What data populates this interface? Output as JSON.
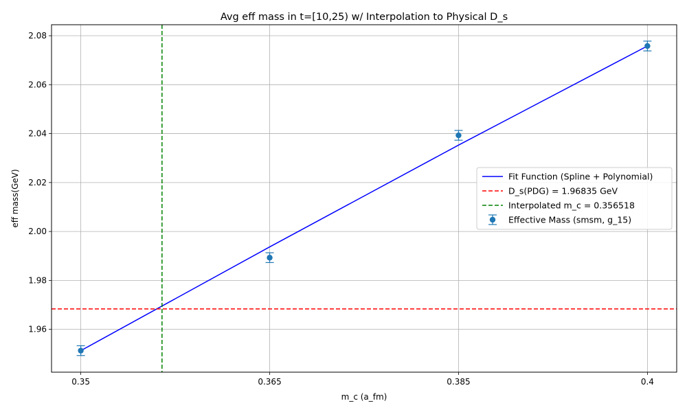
{
  "chart_data": {
    "type": "line",
    "title": "Avg eff mass in t=[10,25) w/ Interpolation to Physical D_s",
    "xlabel": "m_c (a_fm)",
    "ylabel": "eff mass(GeV)",
    "x_tick_labels": [
      "0.35",
      "0.365",
      "0.385",
      "0.4"
    ],
    "x_tick_positions": [
      0,
      1,
      2,
      3
    ],
    "x_range": [
      -0.155,
      3.155
    ],
    "ylim": [
      1.9425,
      2.0845
    ],
    "y_ticks": [
      1.96,
      1.98,
      2.0,
      2.02,
      2.04,
      2.06,
      2.08
    ],
    "y_tick_labels": [
      "1.96",
      "1.98",
      "2.00",
      "2.02",
      "2.04",
      "2.06",
      "2.08"
    ],
    "grid": true,
    "legend_position": "center-right",
    "series": [
      {
        "name": "Fit Function (Spline + Polynomial)",
        "kind": "line",
        "color": "#0000ff",
        "x": [
          0,
          1,
          2,
          3
        ],
        "y": [
          1.9513,
          1.9937,
          2.0353,
          2.0758
        ]
      },
      {
        "name": "D_s(PDG) = 1.96835 GeV",
        "kind": "hline",
        "color": "#ff0000",
        "y": 1.96835
      },
      {
        "name": "Interpolated m_c = 0.356518",
        "kind": "vline",
        "color": "#008000",
        "x": 0.43
      },
      {
        "name": "Effective Mass (smsm, g_15)",
        "kind": "errorbar",
        "color": "#1f77b4",
        "x": [
          0,
          1,
          2,
          3
        ],
        "y": [
          1.9513,
          1.9893,
          2.0393,
          2.0758
        ],
        "yerr": [
          0.002,
          0.002,
          0.002,
          0.002
        ]
      }
    ]
  }
}
